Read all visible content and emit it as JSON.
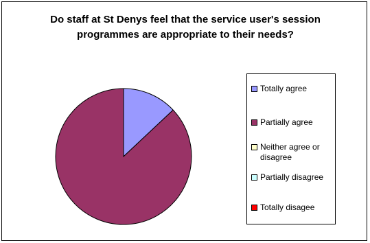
{
  "chart_data": {
    "type": "pie",
    "title": "Do staff at St Denys feel that the service user's session programmes are appropriate to their needs?",
    "categories": [
      "Totally agree",
      "Partially agree",
      "Neither agree or disagree",
      "Partially disagree",
      "Totally disagee"
    ],
    "values": [
      13,
      87,
      0,
      0,
      0
    ],
    "colors": [
      "#9999ff",
      "#993366",
      "#ffffcc",
      "#ccffff",
      "#ff0000"
    ],
    "legend_position": "right",
    "start_angle": "12 o'clock, clockwise"
  }
}
